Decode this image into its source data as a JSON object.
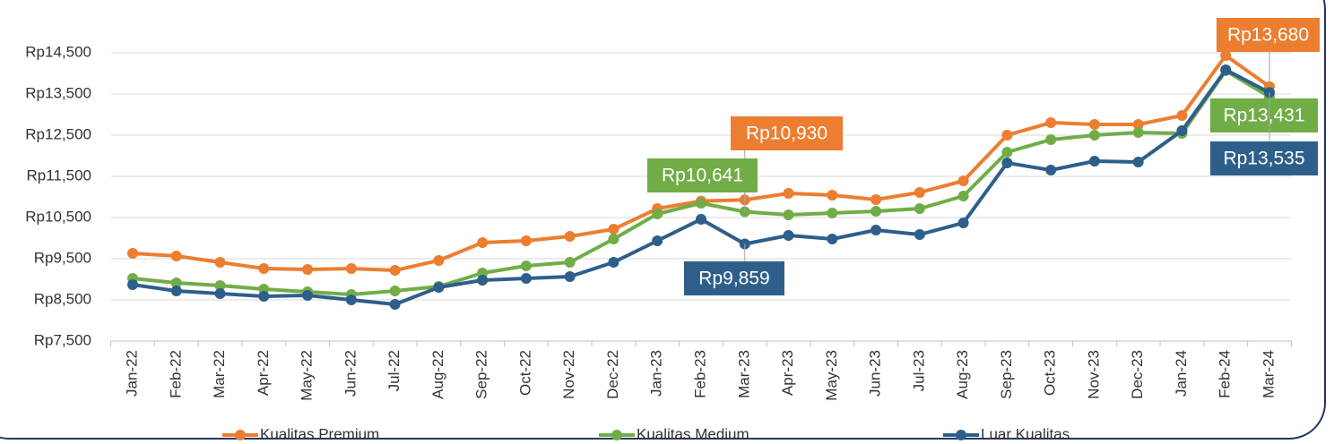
{
  "chart_data": {
    "type": "line",
    "categories": [
      "Jan-22",
      "Feb-22",
      "Mar-22",
      "Apr-22",
      "May-22",
      "Jun-22",
      "Jul-22",
      "Aug-22",
      "Sep-22",
      "Oct-22",
      "Nov-22",
      "Dec-22",
      "Jan-23",
      "Feb-23",
      "Mar-23",
      "Apr-23",
      "May-23",
      "Jun-23",
      "Jul-23",
      "Aug-23",
      "Sep-23",
      "Oct-23",
      "Nov-23",
      "Dec-23",
      "Jan-24",
      "Feb-24",
      "Mar-24"
    ],
    "series": [
      {
        "name": "Kualitas Premium",
        "color": "#ed7d31",
        "values": [
          9630,
          9565,
          9413,
          9260,
          9240,
          9260,
          9217,
          9457,
          9891,
          9935,
          10043,
          10217,
          10717,
          10900,
          10930,
          11087,
          11043,
          10935,
          11109,
          11391,
          12500,
          12804,
          12761,
          12761,
          12978,
          14435,
          13680
        ],
        "value_labels": [
          null,
          null,
          null,
          null,
          null,
          null,
          null,
          null,
          null,
          null,
          null,
          null,
          null,
          null,
          "Rp10,930",
          null,
          null,
          null,
          null,
          null,
          null,
          null,
          null,
          null,
          null,
          null,
          "Rp13,680"
        ]
      },
      {
        "name": "Kualitas Medium",
        "color": "#70ad47",
        "values": [
          9022,
          8913,
          8848,
          8761,
          8696,
          8630,
          8717,
          8826,
          9152,
          9326,
          9413,
          9978,
          10587,
          10848,
          10641,
          10565,
          10609,
          10652,
          10717,
          11022,
          12087,
          12391,
          12500,
          12565,
          12543,
          14065,
          13431
        ],
        "value_labels": [
          null,
          null,
          null,
          null,
          null,
          null,
          null,
          null,
          null,
          null,
          null,
          null,
          null,
          null,
          "Rp10,641",
          null,
          null,
          null,
          null,
          null,
          null,
          null,
          null,
          null,
          null,
          null,
          "Rp13,431"
        ]
      },
      {
        "name": "Luar Kualitas",
        "color": "#2e5f8a",
        "values": [
          8870,
          8717,
          8652,
          8587,
          8609,
          8500,
          8391,
          8804,
          8978,
          9022,
          9065,
          9413,
          9935,
          10457,
          9859,
          10065,
          9978,
          10196,
          10087,
          10370,
          11826,
          11652,
          11870,
          11848,
          12609,
          14087,
          13535
        ],
        "value_labels": [
          null,
          null,
          null,
          null,
          null,
          null,
          null,
          null,
          null,
          null,
          null,
          null,
          null,
          null,
          "Rp9,859",
          null,
          null,
          null,
          null,
          null,
          null,
          null,
          null,
          null,
          null,
          null,
          "Rp13,535"
        ]
      }
    ],
    "ylim": [
      7500,
      15000
    ],
    "yticks": [
      {
        "value": 7500,
        "label": "Rp7,500"
      },
      {
        "value": 8500,
        "label": "Rp8,500"
      },
      {
        "value": 9500,
        "label": "Rp9,500"
      },
      {
        "value": 10500,
        "label": "Rp10,500"
      },
      {
        "value": 11500,
        "label": "Rp11,500"
      },
      {
        "value": 12500,
        "label": "Rp12,500"
      },
      {
        "value": 13500,
        "label": "Rp13,500"
      },
      {
        "value": 14500,
        "label": "Rp14,500"
      }
    ],
    "grid": true,
    "legend": "bottom"
  }
}
